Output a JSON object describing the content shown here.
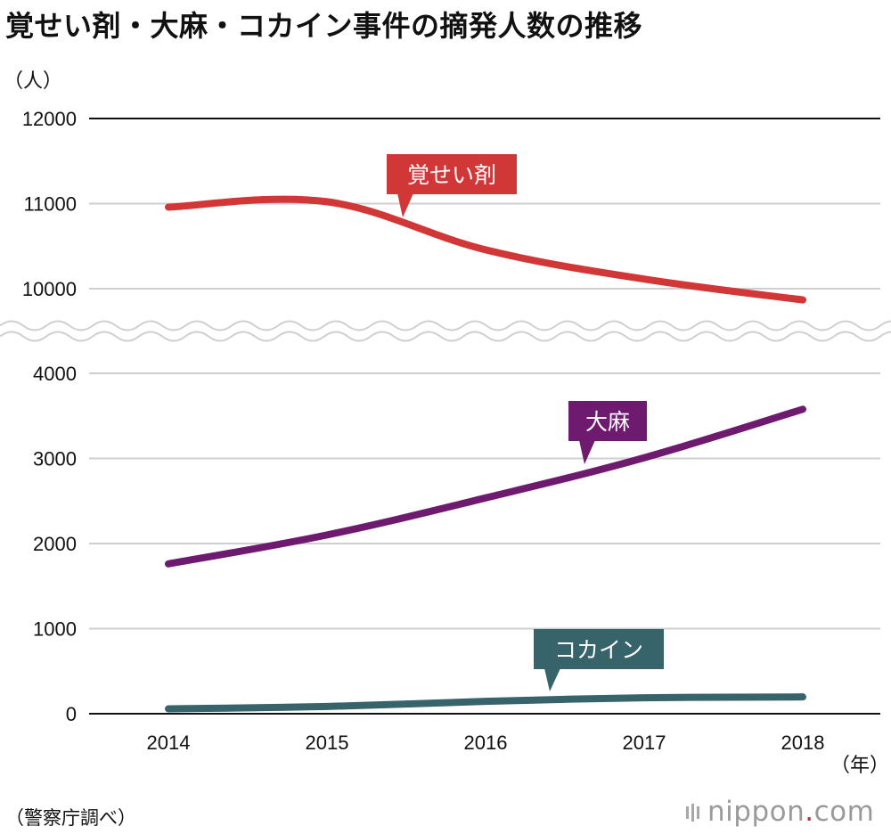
{
  "chart_data": {
    "type": "line",
    "title": "覚せい剤・大麻・コカイン事件の摘発人数の推移",
    "ylabel": "（人）",
    "xlabel": "（年）",
    "categories": [
      "2014",
      "2015",
      "2016",
      "2017",
      "2018"
    ],
    "y_axis_break": {
      "from": 4000,
      "to": 10000
    },
    "yticks_lower": [
      0,
      1000,
      2000,
      3000,
      4000
    ],
    "yticks_upper": [
      10000,
      11000,
      12000
    ],
    "ytick_labels": [
      "0",
      "1000",
      "2000",
      "3000",
      "4000",
      "10000",
      "11000",
      "12000"
    ],
    "grid": true,
    "legend": "callouts",
    "series": [
      {
        "name": "覚せい剤",
        "color": "#d23737",
        "values": [
          10958,
          11022,
          10457,
          10113,
          9868
        ]
      },
      {
        "name": "大麻",
        "color": "#6e1a6e",
        "values": [
          1761,
          2101,
          2536,
          3008,
          3578
        ]
      },
      {
        "name": "コカイン",
        "color": "#37636b",
        "values": [
          57,
          85,
          145,
          187,
          197
        ]
      }
    ]
  },
  "source": "（警察庁調べ）",
  "logo": {
    "pre": "nippon",
    "dot": ".",
    "post": "com"
  }
}
